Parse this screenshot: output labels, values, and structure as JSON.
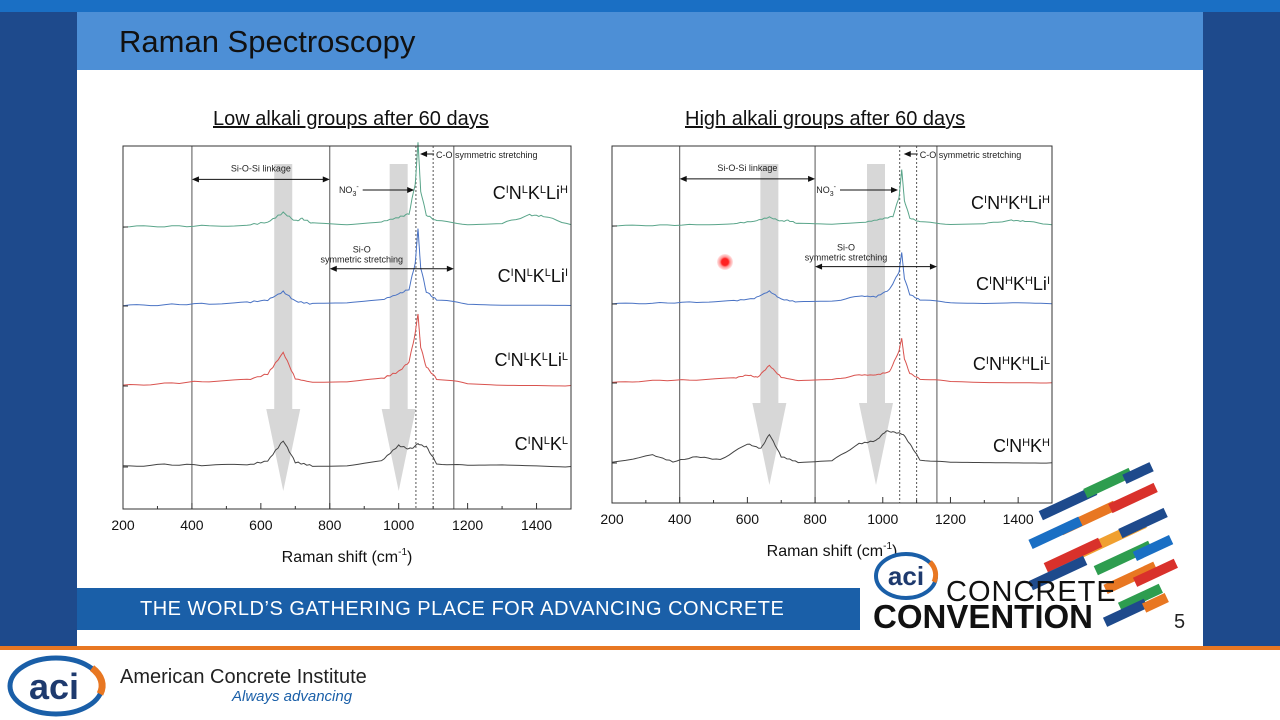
{
  "slide": {
    "title": "Raman Spectroscopy",
    "footer": "THE WORLD’S GATHERING PLACE FOR ADVANCING CONCRETE",
    "page_number": "5"
  },
  "convention_logo": {
    "line1": "CONCRETE",
    "line2": "CONVENTION",
    "mark": "aci"
  },
  "brand": {
    "mark": "aci",
    "name": "American Concrete Institute",
    "tagline": "Always advancing"
  },
  "colors": {
    "green": "#5aa58a",
    "blue": "#4a73c4",
    "red": "#d9534f",
    "black": "#444444",
    "arrow": "#d0d0d0"
  },
  "chart_data": [
    {
      "type": "line",
      "title": "Low alkali groups after 60 days",
      "xlabel": "Raman shift (cm",
      "xlabel_sup": "-1",
      "xlabel_end": ")",
      "xlim": [
        200,
        1500
      ],
      "xticks": [
        "200",
        "400",
        "600",
        "800",
        "1000",
        "1200",
        "1400"
      ],
      "series": [
        {
          "label": [
            [
              "C",
              ""
            ],
            [
              "N",
              "L"
            ],
            [
              "K",
              "L"
            ],
            [
              "Li",
              "H"
            ]
          ],
          "sup0": "I",
          "points": [
            [
              200,
              0.02
            ],
            [
              320,
              0.03
            ],
            [
              450,
              0.05
            ],
            [
              560,
              0.08
            ],
            [
              620,
              0.2
            ],
            [
              665,
              0.6
            ],
            [
              700,
              0.25
            ],
            [
              720,
              0.35
            ],
            [
              750,
              0.15
            ],
            [
              850,
              0.08
            ],
            [
              950,
              0.22
            ],
            [
              1000,
              0.4
            ],
            [
              1030,
              0.55
            ],
            [
              1048,
              1.8
            ],
            [
              1056,
              3.5
            ],
            [
              1064,
              1.5
            ],
            [
              1080,
              0.5
            ],
            [
              1110,
              0.25
            ],
            [
              1200,
              0.12
            ],
            [
              1300,
              0.15
            ],
            [
              1380,
              0.5
            ],
            [
              1420,
              0.45
            ],
            [
              1500,
              0.1
            ]
          ]
        },
        {
          "label": [
            [
              "C",
              ""
            ],
            [
              "N",
              "L"
            ],
            [
              "K",
              "L"
            ],
            [
              "Li",
              "I"
            ]
          ],
          "sup0": "I",
          "points": [
            [
              200,
              0.02
            ],
            [
              320,
              0.05
            ],
            [
              450,
              0.1
            ],
            [
              560,
              0.15
            ],
            [
              620,
              0.25
            ],
            [
              665,
              0.6
            ],
            [
              700,
              0.2
            ],
            [
              750,
              0.08
            ],
            [
              850,
              0.1
            ],
            [
              950,
              0.25
            ],
            [
              1000,
              0.5
            ],
            [
              1030,
              0.7
            ],
            [
              1048,
              1.8
            ],
            [
              1056,
              3.2
            ],
            [
              1064,
              1.6
            ],
            [
              1080,
              0.6
            ],
            [
              1110,
              0.25
            ],
            [
              1200,
              0.1
            ],
            [
              1300,
              0.06
            ],
            [
              1400,
              0.05
            ],
            [
              1500,
              0.02
            ]
          ]
        },
        {
          "label": [
            [
              "C",
              ""
            ],
            [
              "N",
              "L"
            ],
            [
              "K",
              "L"
            ],
            [
              "Li",
              "L"
            ]
          ],
          "sup0": "I",
          "points": [
            [
              200,
              0.02
            ],
            [
              320,
              0.1
            ],
            [
              450,
              0.2
            ],
            [
              560,
              0.25
            ],
            [
              620,
              0.5
            ],
            [
              665,
              1.4
            ],
            [
              700,
              0.3
            ],
            [
              750,
              0.15
            ],
            [
              850,
              0.15
            ],
            [
              950,
              0.3
            ],
            [
              1000,
              0.6
            ],
            [
              1030,
              1.0
            ],
            [
              1048,
              2.2
            ],
            [
              1056,
              3.0
            ],
            [
              1064,
              1.6
            ],
            [
              1080,
              0.8
            ],
            [
              1110,
              0.3
            ],
            [
              1200,
              0.1
            ],
            [
              1300,
              0.05
            ],
            [
              1400,
              0.05
            ],
            [
              1500,
              0.02
            ]
          ]
        },
        {
          "label": [
            [
              "C",
              ""
            ],
            [
              "N",
              "L"
            ],
            [
              "K",
              "L"
            ]
          ],
          "sup0": "I",
          "points": [
            [
              200,
              0.02
            ],
            [
              320,
              0.1
            ],
            [
              450,
              0.08
            ],
            [
              560,
              0.08
            ],
            [
              620,
              0.25
            ],
            [
              665,
              1.1
            ],
            [
              700,
              0.2
            ],
            [
              750,
              0.05
            ],
            [
              850,
              0.05
            ],
            [
              950,
              0.25
            ],
            [
              1000,
              0.9
            ],
            [
              1030,
              0.75
            ],
            [
              1048,
              0.85
            ],
            [
              1056,
              1.0
            ],
            [
              1064,
              0.9
            ],
            [
              1080,
              0.85
            ],
            [
              1110,
              0.15
            ],
            [
              1200,
              0.05
            ],
            [
              1300,
              0.08
            ],
            [
              1400,
              0.06
            ],
            [
              1500,
              0.02
            ]
          ]
        }
      ],
      "ranges": [
        {
          "label": "Si-O-Si linkage",
          "from": 400,
          "to": 800,
          "level": 0.23
        },
        {
          "label": "Si-O",
          "label2": "symmetric stretching",
          "from": 800,
          "to": 1160,
          "level": 0.69
        }
      ],
      "markers": {
        "solid": [
          400,
          800,
          1160
        ],
        "dotted": [
          1050,
          1100
        ]
      },
      "annotations": {
        "no3": "NO",
        "no3_sub": "3",
        "no3_sup": "-",
        "co": "C-O symmetric stretching"
      },
      "arrows_x": [
        665,
        1000
      ]
    },
    {
      "type": "line",
      "title": "High alkali groups after 60 days",
      "xlabel": "Raman shift (cm",
      "xlabel_sup": "-1",
      "xlabel_end": ")",
      "xlim": [
        200,
        1500
      ],
      "xticks": [
        "200",
        "400",
        "600",
        "800",
        "1000",
        "1200",
        "1400"
      ],
      "series": [
        {
          "label": [
            [
              "C",
              ""
            ],
            [
              "N",
              "H"
            ],
            [
              "K",
              "H"
            ],
            [
              "Li",
              "H"
            ]
          ],
          "sup0": "I",
          "points": [
            [
              200,
              0.02
            ],
            [
              320,
              0.04
            ],
            [
              450,
              0.08
            ],
            [
              560,
              0.15
            ],
            [
              620,
              0.3
            ],
            [
              665,
              0.55
            ],
            [
              700,
              0.3
            ],
            [
              720,
              0.35
            ],
            [
              750,
              0.15
            ],
            [
              850,
              0.1
            ],
            [
              950,
              0.25
            ],
            [
              1000,
              0.45
            ],
            [
              1030,
              0.6
            ],
            [
              1048,
              1.8
            ],
            [
              1056,
              3.5
            ],
            [
              1064,
              1.6
            ],
            [
              1080,
              0.5
            ],
            [
              1110,
              0.25
            ],
            [
              1200,
              0.12
            ],
            [
              1300,
              0.15
            ],
            [
              1380,
              0.35
            ],
            [
              1420,
              0.3
            ],
            [
              1500,
              0.08
            ]
          ]
        },
        {
          "label": [
            [
              "C",
              ""
            ],
            [
              "N",
              "H"
            ],
            [
              "K",
              "H"
            ],
            [
              "Li",
              "I"
            ]
          ],
          "sup0": "I",
          "points": [
            [
              200,
              0.02
            ],
            [
              320,
              0.05
            ],
            [
              450,
              0.12
            ],
            [
              560,
              0.2
            ],
            [
              620,
              0.35
            ],
            [
              665,
              0.8
            ],
            [
              700,
              0.3
            ],
            [
              750,
              0.12
            ],
            [
              850,
              0.15
            ],
            [
              930,
              0.5
            ],
            [
              980,
              0.45
            ],
            [
              1020,
              0.9
            ],
            [
              1048,
              2.0
            ],
            [
              1056,
              3.2
            ],
            [
              1064,
              1.6
            ],
            [
              1080,
              0.6
            ],
            [
              1110,
              0.25
            ],
            [
              1200,
              0.1
            ],
            [
              1300,
              0.06
            ],
            [
              1400,
              0.1
            ],
            [
              1500,
              0.02
            ]
          ]
        },
        {
          "label": [
            [
              "C",
              ""
            ],
            [
              "N",
              "H"
            ],
            [
              "K",
              "H"
            ],
            [
              "Li",
              "L"
            ]
          ],
          "sup0": "I",
          "points": [
            [
              200,
              0.02
            ],
            [
              320,
              0.15
            ],
            [
              450,
              0.2
            ],
            [
              560,
              0.3
            ],
            [
              600,
              0.5
            ],
            [
              630,
              0.35
            ],
            [
              665,
              1.1
            ],
            [
              700,
              0.35
            ],
            [
              750,
              0.15
            ],
            [
              850,
              0.2
            ],
            [
              930,
              0.5
            ],
            [
              980,
              0.5
            ],
            [
              1020,
              0.7
            ],
            [
              1048,
              2.0
            ],
            [
              1056,
              2.8
            ],
            [
              1064,
              1.5
            ],
            [
              1080,
              0.6
            ],
            [
              1110,
              0.25
            ],
            [
              1200,
              0.1
            ],
            [
              1300,
              0.05
            ],
            [
              1400,
              0.05
            ],
            [
              1500,
              0.02
            ]
          ]
        },
        {
          "label": [
            [
              "C",
              ""
            ],
            [
              "N",
              "H"
            ],
            [
              "K",
              "H"
            ]
          ],
          "sup0": "I",
          "points": [
            [
              200,
              0.02
            ],
            [
              320,
              0.5
            ],
            [
              380,
              0.08
            ],
            [
              450,
              0.4
            ],
            [
              520,
              0.2
            ],
            [
              600,
              1.2
            ],
            [
              640,
              0.9
            ],
            [
              665,
              1.8
            ],
            [
              700,
              0.4
            ],
            [
              750,
              0.05
            ],
            [
              850,
              0.15
            ],
            [
              930,
              1.2
            ],
            [
              980,
              1.4
            ],
            [
              1010,
              2.0
            ],
            [
              1040,
              1.9
            ],
            [
              1060,
              1.8
            ],
            [
              1080,
              1.2
            ],
            [
              1110,
              0.2
            ],
            [
              1200,
              0.02
            ],
            [
              1300,
              0.02
            ],
            [
              1400,
              0.02
            ],
            [
              1500,
              0.02
            ]
          ]
        }
      ],
      "ranges": [
        {
          "label": "Si-O-Si linkage",
          "from": 400,
          "to": 800,
          "level": 0.23
        },
        {
          "label": "Si-O",
          "label2": "symmetric stretching",
          "from": 800,
          "to": 1160,
          "level": 0.69
        }
      ],
      "markers": {
        "solid": [
          400,
          800,
          1160
        ],
        "dotted": [
          1050,
          1100
        ]
      },
      "annotations": {
        "no3": "NO",
        "no3_sub": "3",
        "no3_sup": "-",
        "co": "C-O symmetric stretching"
      },
      "arrows_x": [
        665,
        980
      ]
    }
  ]
}
